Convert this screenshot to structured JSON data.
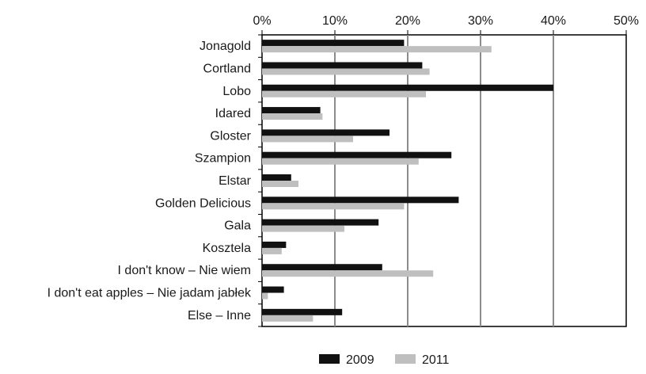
{
  "chart_data": {
    "type": "bar",
    "orientation": "horizontal",
    "categories": [
      "Jonagold",
      "Cortland",
      "Lobo",
      "Idared",
      "Gloster",
      "Szampion",
      "Elstar",
      "Golden Delicious",
      "Gala",
      "Kosztela",
      "I don't know – Nie wiem",
      "I don't eat apples – Nie jadam jabłek",
      "Else – Inne"
    ],
    "series": [
      {
        "name": "2009",
        "color": "#111111",
        "values": [
          19.5,
          22,
          40,
          8,
          17.5,
          26,
          4,
          27,
          16,
          3.3,
          16.5,
          3,
          11
        ]
      },
      {
        "name": "2011",
        "color": "#bfbfbf",
        "values": [
          31.5,
          23,
          22.5,
          8.3,
          12.5,
          21.5,
          5,
          19.5,
          11.3,
          2.7,
          23.5,
          0.8,
          7
        ]
      }
    ],
    "xlim": [
      0,
      50
    ],
    "xticks": [
      "0%",
      "10%",
      "20%",
      "30%",
      "40%",
      "50%"
    ],
    "xaxis_position": "top",
    "grid": true,
    "legend": "bottom",
    "title": "",
    "xlabel": "",
    "ylabel": ""
  }
}
